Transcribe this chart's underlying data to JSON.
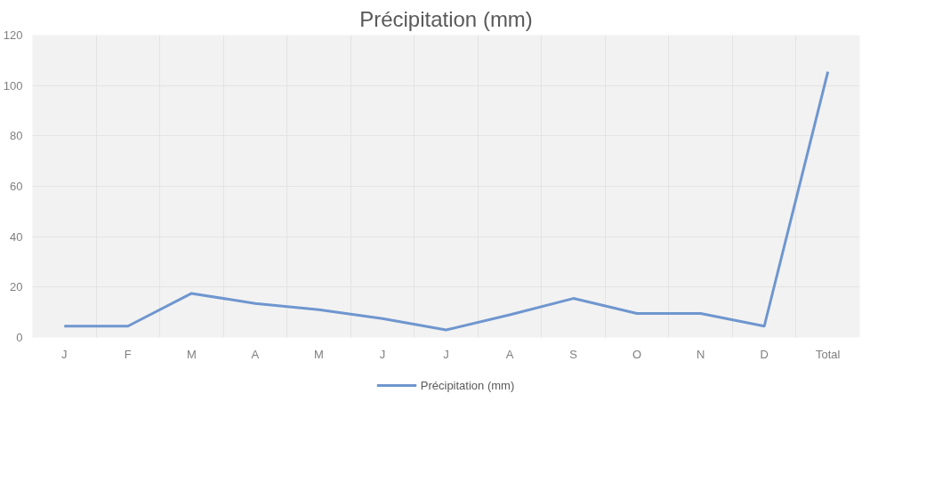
{
  "chart_data": {
    "type": "line",
    "title": "Précipitation (mm)",
    "categories": [
      "J",
      "F",
      "M",
      "A",
      "M",
      "J",
      "J",
      "A",
      "S",
      "O",
      "N",
      "D",
      "Total"
    ],
    "series": [
      {
        "name": "Précipitation (mm)",
        "color": "#6f96cf",
        "values": [
          4.5,
          4.5,
          17.5,
          13.5,
          11,
          7.5,
          3,
          9,
          15.5,
          9.5,
          9.5,
          4.5,
          105.5
        ]
      }
    ],
    "ylim": [
      0,
      120
    ],
    "yticks": [
      0,
      20,
      40,
      60,
      80,
      100,
      120
    ],
    "grid": true,
    "legend": "bottom",
    "marker": "none",
    "line_style": "solid"
  }
}
